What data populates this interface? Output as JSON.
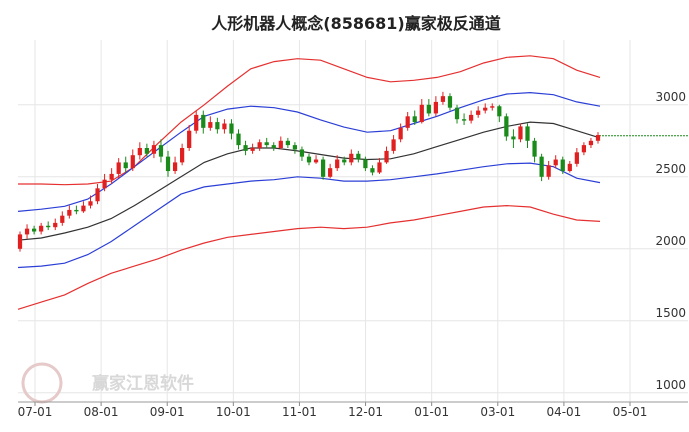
{
  "chart_data": {
    "type": "line",
    "title": "人形机器人概念(858681)赢家极反通道",
    "watermark": "赢家江恩软件",
    "x_tick_labels": [
      "07-01",
      "08-01",
      "09-01",
      "10-01",
      "11-01",
      "12-01",
      "01-01",
      "03-01",
      "04-01",
      "05-01"
    ],
    "y_tick_labels": [
      "3000",
      "2500",
      "2000",
      "1500",
      "1000"
    ],
    "y_ticks": [
      3000,
      2500,
      2000,
      1500,
      1000
    ],
    "ylim": [
      950,
      3450
    ],
    "grid": true,
    "last_value": 2785,
    "colors": {
      "up": "#e02020",
      "down": "#1a8a1a",
      "outer_band": "#e53030",
      "inner_band": "#2b3fd6",
      "mid_line": "#333333",
      "last_value_line": "#1a8a1a",
      "grid": "#e6e6e6"
    },
    "series": [
      {
        "name": "",
        "role": "outer-upper",
        "values": [
          2450,
          2450,
          2445,
          2450,
          2470,
          2570,
          2730,
          2880,
          3000,
          3130,
          3250,
          3300,
          3320,
          3310,
          3250,
          3190,
          3160,
          3170,
          3190,
          3230,
          3290,
          3330,
          3340,
          3320,
          3240,
          3190
        ]
      },
      {
        "name": "",
        "role": "inner-upper",
        "values": [
          2260,
          2275,
          2295,
          2345,
          2450,
          2570,
          2690,
          2810,
          2920,
          2970,
          2990,
          2980,
          2950,
          2895,
          2845,
          2810,
          2820,
          2870,
          2920,
          2980,
          3035,
          3075,
          3085,
          3070,
          3020,
          2990
        ]
      },
      {
        "name": "",
        "role": "middle",
        "values": [
          2060,
          2075,
          2110,
          2150,
          2210,
          2300,
          2400,
          2500,
          2600,
          2660,
          2700,
          2700,
          2680,
          2655,
          2630,
          2620,
          2625,
          2660,
          2710,
          2760,
          2810,
          2850,
          2880,
          2870,
          2820,
          2770
        ]
      },
      {
        "name": "",
        "role": "inner-lower",
        "values": [
          1870,
          1880,
          1900,
          1960,
          2050,
          2160,
          2270,
          2380,
          2430,
          2450,
          2470,
          2480,
          2500,
          2490,
          2470,
          2470,
          2480,
          2500,
          2520,
          2545,
          2570,
          2590,
          2595,
          2570,
          2490,
          2460
        ]
      },
      {
        "name": "",
        "role": "outer-lower",
        "values": [
          1580,
          1630,
          1680,
          1760,
          1830,
          1880,
          1930,
          1990,
          2040,
          2080,
          2100,
          2120,
          2140,
          2150,
          2140,
          2150,
          2180,
          2200,
          2230,
          2260,
          2290,
          2300,
          2290,
          2240,
          2200,
          2190
        ]
      }
    ],
    "candles": [
      [
        2000,
        2100,
        1980,
        2120
      ],
      [
        2100,
        2140,
        2070,
        2170
      ],
      [
        2140,
        2120,
        2100,
        2160
      ],
      [
        2120,
        2160,
        2100,
        2180
      ],
      [
        2160,
        2150,
        2130,
        2190
      ],
      [
        2150,
        2180,
        2130,
        2210
      ],
      [
        2180,
        2230,
        2160,
        2260
      ],
      [
        2230,
        2270,
        2210,
        2300
      ],
      [
        2270,
        2260,
        2240,
        2300
      ],
      [
        2260,
        2300,
        2250,
        2330
      ],
      [
        2300,
        2330,
        2280,
        2370
      ],
      [
        2330,
        2420,
        2310,
        2450
      ],
      [
        2420,
        2480,
        2400,
        2520
      ],
      [
        2480,
        2520,
        2450,
        2560
      ],
      [
        2520,
        2600,
        2490,
        2630
      ],
      [
        2600,
        2560,
        2530,
        2640
      ],
      [
        2560,
        2650,
        2540,
        2690
      ],
      [
        2650,
        2700,
        2620,
        2740
      ],
      [
        2700,
        2660,
        2640,
        2730
      ],
      [
        2660,
        2720,
        2630,
        2750
      ],
      [
        2720,
        2640,
        2600,
        2760
      ],
      [
        2640,
        2540,
        2500,
        2680
      ],
      [
        2540,
        2600,
        2520,
        2640
      ],
      [
        2600,
        2700,
        2580,
        2730
      ],
      [
        2700,
        2820,
        2680,
        2860
      ],
      [
        2820,
        2930,
        2800,
        2960
      ],
      [
        2930,
        2840,
        2800,
        2960
      ],
      [
        2840,
        2880,
        2820,
        2920
      ],
      [
        2880,
        2830,
        2800,
        2910
      ],
      [
        2830,
        2870,
        2800,
        2900
      ],
      [
        2870,
        2800,
        2760,
        2900
      ],
      [
        2800,
        2720,
        2690,
        2830
      ],
      [
        2720,
        2680,
        2650,
        2750
      ],
      [
        2680,
        2700,
        2660,
        2730
      ],
      [
        2700,
        2740,
        2680,
        2760
      ],
      [
        2740,
        2720,
        2700,
        2770
      ],
      [
        2720,
        2700,
        2680,
        2740
      ],
      [
        2700,
        2750,
        2690,
        2780
      ],
      [
        2750,
        2720,
        2700,
        2770
      ],
      [
        2720,
        2690,
        2660,
        2740
      ],
      [
        2690,
        2640,
        2610,
        2710
      ],
      [
        2640,
        2600,
        2580,
        2660
      ],
      [
        2600,
        2620,
        2590,
        2650
      ],
      [
        2620,
        2500,
        2480,
        2640
      ],
      [
        2500,
        2560,
        2490,
        2590
      ],
      [
        2560,
        2620,
        2540,
        2650
      ],
      [
        2620,
        2600,
        2580,
        2640
      ],
      [
        2600,
        2660,
        2580,
        2690
      ],
      [
        2660,
        2620,
        2600,
        2680
      ],
      [
        2620,
        2560,
        2540,
        2640
      ],
      [
        2560,
        2530,
        2510,
        2580
      ],
      [
        2530,
        2600,
        2520,
        2630
      ],
      [
        2600,
        2680,
        2590,
        2710
      ],
      [
        2680,
        2760,
        2660,
        2790
      ],
      [
        2760,
        2840,
        2740,
        2870
      ],
      [
        2840,
        2920,
        2820,
        2950
      ],
      [
        2920,
        2880,
        2860,
        2960
      ],
      [
        2880,
        3000,
        2870,
        3040
      ],
      [
        3000,
        2940,
        2920,
        3040
      ],
      [
        2940,
        3020,
        2920,
        3060
      ],
      [
        3020,
        3060,
        3000,
        3090
      ],
      [
        3060,
        2980,
        2960,
        3080
      ],
      [
        2980,
        2900,
        2870,
        3000
      ],
      [
        2900,
        2890,
        2860,
        2940
      ],
      [
        2890,
        2930,
        2870,
        2960
      ],
      [
        2930,
        2960,
        2910,
        2990
      ],
      [
        2960,
        2980,
        2940,
        3010
      ],
      [
        2980,
        2990,
        2960,
        3010
      ],
      [
        2990,
        2920,
        2880,
        3000
      ],
      [
        2920,
        2780,
        2750,
        2940
      ],
      [
        2780,
        2760,
        2700,
        2830
      ],
      [
        2760,
        2850,
        2740,
        2870
      ],
      [
        2850,
        2750,
        2700,
        2870
      ],
      [
        2750,
        2640,
        2600,
        2770
      ],
      [
        2640,
        2500,
        2470,
        2660
      ],
      [
        2500,
        2580,
        2480,
        2610
      ],
      [
        2580,
        2620,
        2560,
        2650
      ],
      [
        2620,
        2540,
        2520,
        2640
      ],
      [
        2540,
        2590,
        2530,
        2610
      ],
      [
        2590,
        2670,
        2570,
        2700
      ],
      [
        2670,
        2720,
        2650,
        2740
      ],
      [
        2720,
        2750,
        2700,
        2770
      ],
      [
        2750,
        2790,
        2730,
        2810
      ]
    ]
  }
}
